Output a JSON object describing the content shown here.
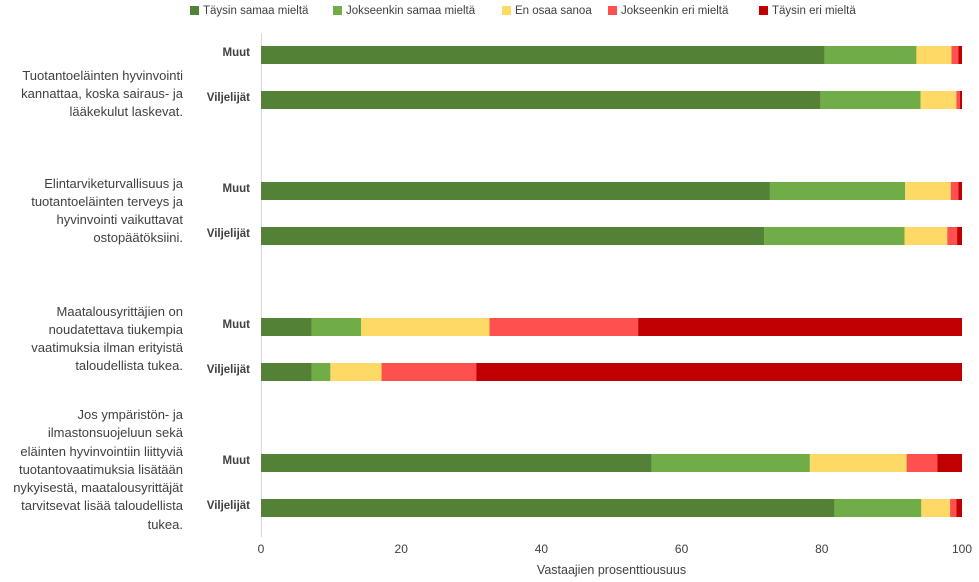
{
  "chart_data": {
    "type": "bar",
    "orientation": "horizontal",
    "stacked": true,
    "xlabel": "Vastaajien prosenttiousuus",
    "xlim": [
      0,
      100
    ],
    "xticks": [
      "0",
      "20",
      "40",
      "60",
      "80",
      "100"
    ],
    "grid": false,
    "legend_position": "top",
    "series": [
      {
        "name": "Täysin samaa mieltä",
        "color": "#538135"
      },
      {
        "name": "Jokseenkin samaa mieltä",
        "color": "#70AD47"
      },
      {
        "name": "En osaa sanoa",
        "color": "#FFD966"
      },
      {
        "name": "Jokseenkin eri mieltä",
        "color": "#FF5050"
      },
      {
        "name": "Täysin eri mieltä",
        "color": "#C00000"
      }
    ],
    "questions": [
      {
        "text": "Tuotantoeläinten hyvinvointi kannattaa, koska sairaus- ja lääkekulut laskevat.",
        "groups": [
          {
            "label": "Muut",
            "values": [
              80.4,
              13.1,
              5.0,
              1.0,
              0.5
            ]
          },
          {
            "label": "Viljelijät",
            "values": [
              79.8,
              14.3,
              5.1,
              0.5,
              0.3
            ]
          }
        ]
      },
      {
        "text": "Elintarviketurvallisuus ja tuotantoeläinten terveys ja hyvinvointi vaikuttavat ostopäätöksiini.",
        "groups": [
          {
            "label": "Muut",
            "values": [
              72.6,
              19.3,
              6.5,
              1.1,
              0.5
            ]
          },
          {
            "label": "Viljelijät",
            "values": [
              71.8,
              20.0,
              6.1,
              1.4,
              0.7
            ]
          }
        ]
      },
      {
        "text": "Maatalousyrittäjien on noudatettava tiukempia vaatimuksia ilman erityistä taloudellista tukea.",
        "groups": [
          {
            "label": "Muut",
            "values": [
              7.2,
              7.1,
              18.3,
              21.2,
              46.2
            ]
          },
          {
            "label": "Viljelijät",
            "values": [
              7.2,
              2.7,
              7.3,
              13.5,
              69.3
            ]
          }
        ]
      },
      {
        "text": "Jos ympäristön- ja ilmastonsuojeluun sekä eläinten hyvinvointiin liittyviä tuotantovaatimuksia lisätään nykyisestä, maatalousyrittäjät tarvitsevat lisää taloudellista tukea.",
        "groups": [
          {
            "label": "Muut",
            "values": [
              55.7,
              22.6,
              13.8,
              4.4,
              3.5
            ]
          },
          {
            "label": "Viljelijät",
            "values": [
              81.8,
              12.4,
              4.1,
              0.9,
              0.8
            ]
          }
        ]
      }
    ]
  }
}
